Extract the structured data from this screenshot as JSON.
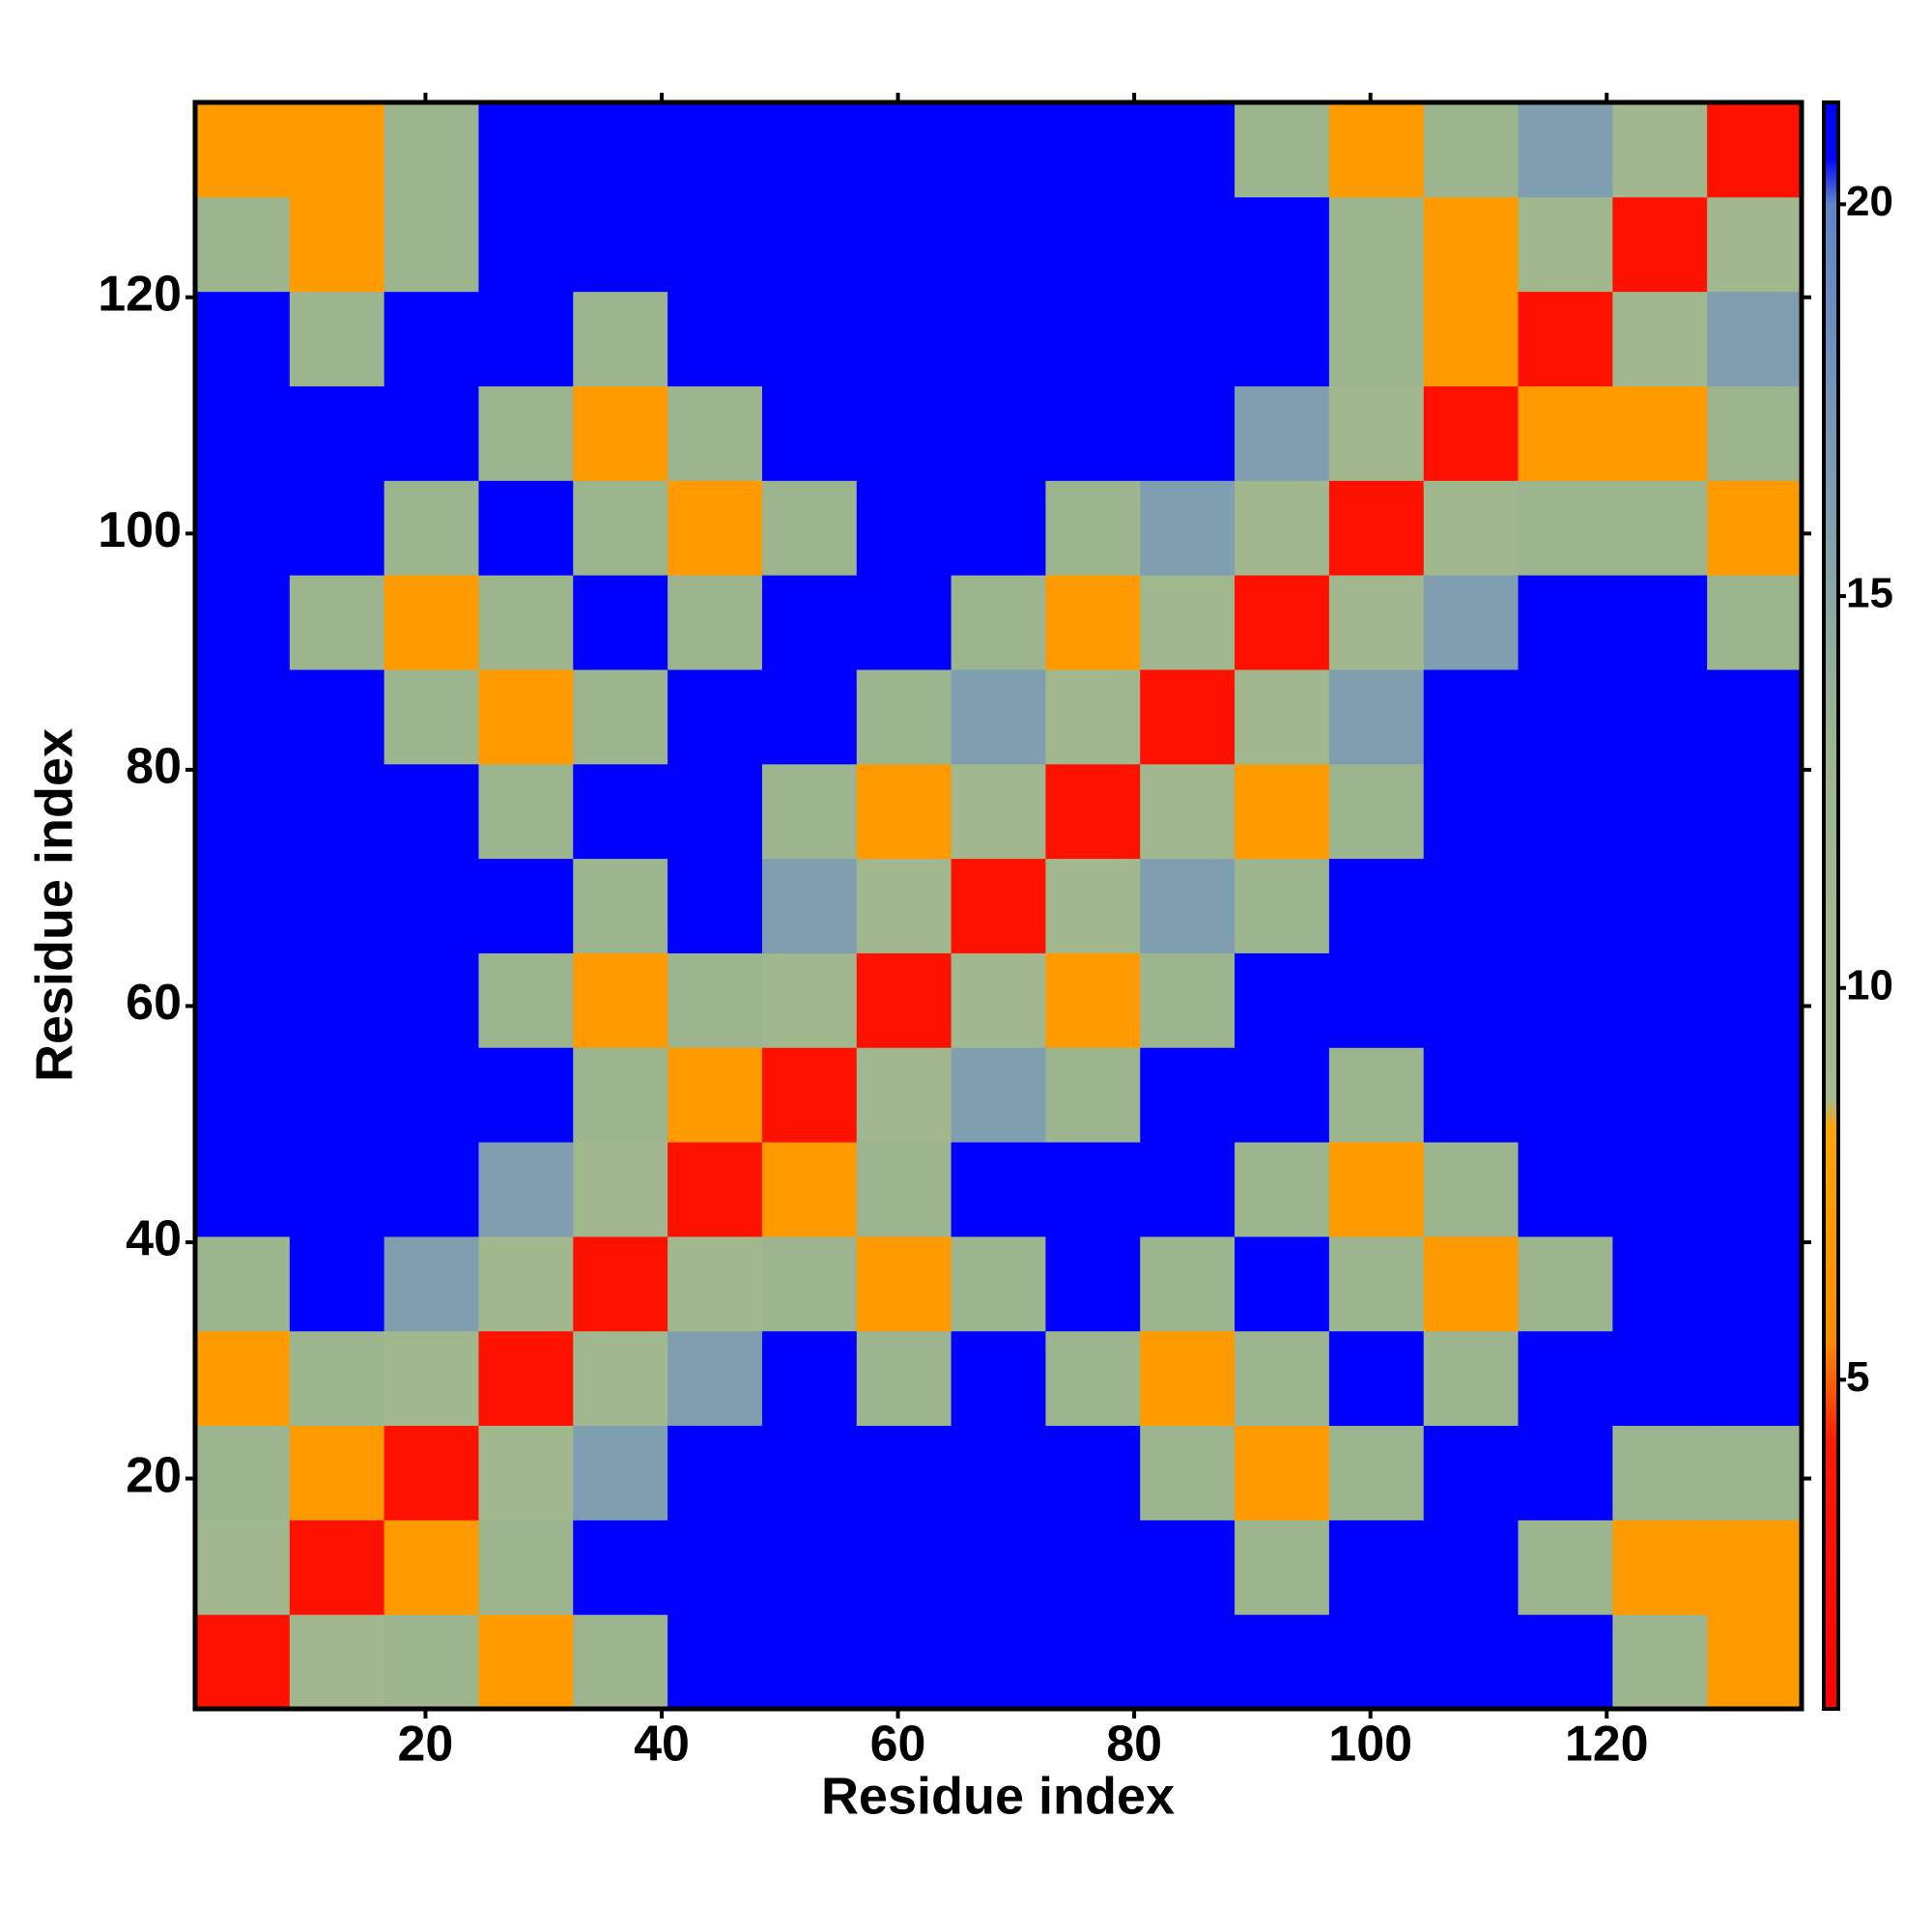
{
  "chart_data": {
    "type": "heatmap",
    "xlabel": "Residue index",
    "ylabel": "Residue index",
    "x_edges": [
      0.5,
      8.5,
      16.5,
      24.5,
      32.5,
      40.5,
      48.5,
      56.5,
      64.5,
      72.5,
      80.5,
      88.5,
      96.5,
      104.5,
      112.5,
      120.5,
      128.5,
      136.5
    ],
    "y_edges": [
      0.5,
      8.5,
      16.5,
      24.5,
      32.5,
      40.5,
      48.5,
      56.5,
      64.5,
      72.5,
      80.5,
      88.5,
      96.5,
      104.5,
      112.5,
      120.5,
      128.5,
      136.5
    ],
    "z": [
      [
        3,
        10,
        13,
        7,
        13,
        22,
        22,
        22,
        22,
        22,
        22,
        22,
        22,
        22,
        22,
        13,
        7
      ],
      [
        10,
        3,
        7,
        13,
        22,
        22,
        22,
        22,
        22,
        22,
        22,
        13,
        22,
        22,
        13,
        7,
        7
      ],
      [
        13,
        7,
        3,
        10,
        16,
        22,
        22,
        22,
        22,
        22,
        13,
        7,
        13,
        22,
        22,
        13,
        13
      ],
      [
        7,
        13,
        10,
        3,
        10,
        16,
        22,
        13,
        22,
        13,
        7,
        13,
        22,
        13,
        22,
        22,
        22
      ],
      [
        13,
        22,
        16,
        10,
        3,
        10,
        13,
        7,
        13,
        22,
        13,
        22,
        13,
        7,
        13,
        22,
        22
      ],
      [
        22,
        22,
        22,
        16,
        10,
        3,
        7,
        13,
        22,
        22,
        22,
        13,
        7,
        13,
        22,
        22,
        22
      ],
      [
        22,
        22,
        22,
        22,
        13,
        7,
        3,
        10,
        16,
        13,
        22,
        22,
        13,
        22,
        22,
        22,
        22
      ],
      [
        22,
        22,
        22,
        13,
        7,
        13,
        10,
        3,
        10,
        7,
        13,
        22,
        22,
        22,
        22,
        22,
        22
      ],
      [
        22,
        22,
        22,
        22,
        13,
        22,
        16,
        10,
        3,
        10,
        16,
        13,
        22,
        22,
        22,
        22,
        22
      ],
      [
        22,
        22,
        22,
        13,
        22,
        22,
        13,
        7,
        10,
        3,
        10,
        7,
        13,
        22,
        22,
        22,
        22
      ],
      [
        22,
        22,
        13,
        7,
        13,
        22,
        22,
        13,
        16,
        10,
        3,
        10,
        16,
        22,
        22,
        22,
        22
      ],
      [
        22,
        13,
        7,
        13,
        22,
        13,
        22,
        22,
        13,
        7,
        10,
        3,
        10,
        16,
        22,
        22,
        13
      ],
      [
        22,
        22,
        13,
        22,
        13,
        7,
        13,
        22,
        22,
        13,
        16,
        10,
        3,
        10,
        13,
        13,
        7
      ],
      [
        22,
        22,
        22,
        13,
        7,
        13,
        22,
        22,
        22,
        22,
        22,
        16,
        10,
        3,
        7,
        7,
        13
      ],
      [
        22,
        13,
        22,
        22,
        13,
        22,
        22,
        22,
        22,
        22,
        22,
        22,
        13,
        7,
        3,
        10,
        16
      ],
      [
        13,
        7,
        13,
        22,
        22,
        22,
        22,
        22,
        22,
        22,
        22,
        22,
        13,
        7,
        10,
        3,
        10
      ],
      [
        7,
        7,
        13,
        22,
        22,
        22,
        22,
        22,
        22,
        22,
        22,
        13,
        7,
        13,
        16,
        10,
        3
      ]
    ],
    "xlim": [
      0.5,
      136.5
    ],
    "ylim": [
      0.5,
      136.5
    ],
    "xticks": [
      20,
      40,
      60,
      80,
      100,
      120
    ],
    "yticks": [
      20,
      40,
      60,
      80,
      100,
      120
    ],
    "clim": [
      0.8,
      21.3
    ],
    "cticks": [
      5,
      10,
      15,
      20
    ],
    "colorscale": [
      {
        "value": 0.8,
        "color": "#ff0000"
      },
      {
        "value": 4.2,
        "color": "#ff1a00"
      },
      {
        "value": 5.5,
        "color": "#ff8c00"
      },
      {
        "value": 8.2,
        "color": "#ffa500"
      },
      {
        "value": 8.6,
        "color": "#a3b98e"
      },
      {
        "value": 13,
        "color": "#9db58e"
      },
      {
        "value": 16,
        "color": "#7f9fb0"
      },
      {
        "value": 20,
        "color": "#5f85c8"
      },
      {
        "value": 20.6,
        "color": "#0000ff"
      },
      {
        "value": 21.3,
        "color": "#0000ff"
      }
    ]
  }
}
